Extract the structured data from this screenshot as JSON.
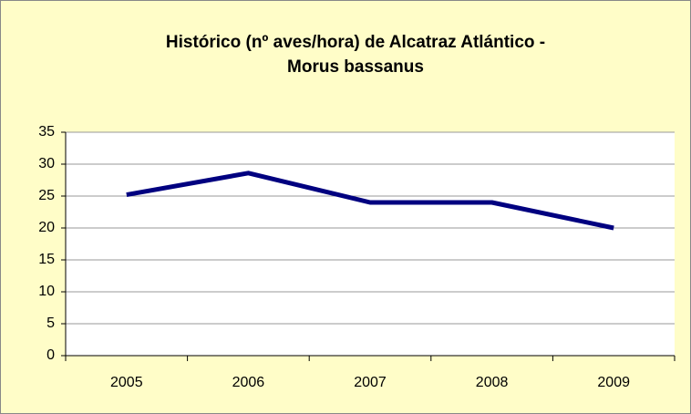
{
  "chart_data": {
    "type": "line",
    "title": [
      "Histórico (nº aves/hora) de  Alcatraz Atlántico -",
      "Morus bassanus"
    ],
    "categories": [
      "2005",
      "2006",
      "2007",
      "2008",
      "2009"
    ],
    "values": [
      25.2,
      28.6,
      24,
      24,
      20
    ],
    "color": "#000080",
    "ylim": [
      0,
      35
    ],
    "yticks": [
      0,
      5,
      10,
      15,
      20,
      25,
      30,
      35
    ],
    "grid": true
  }
}
